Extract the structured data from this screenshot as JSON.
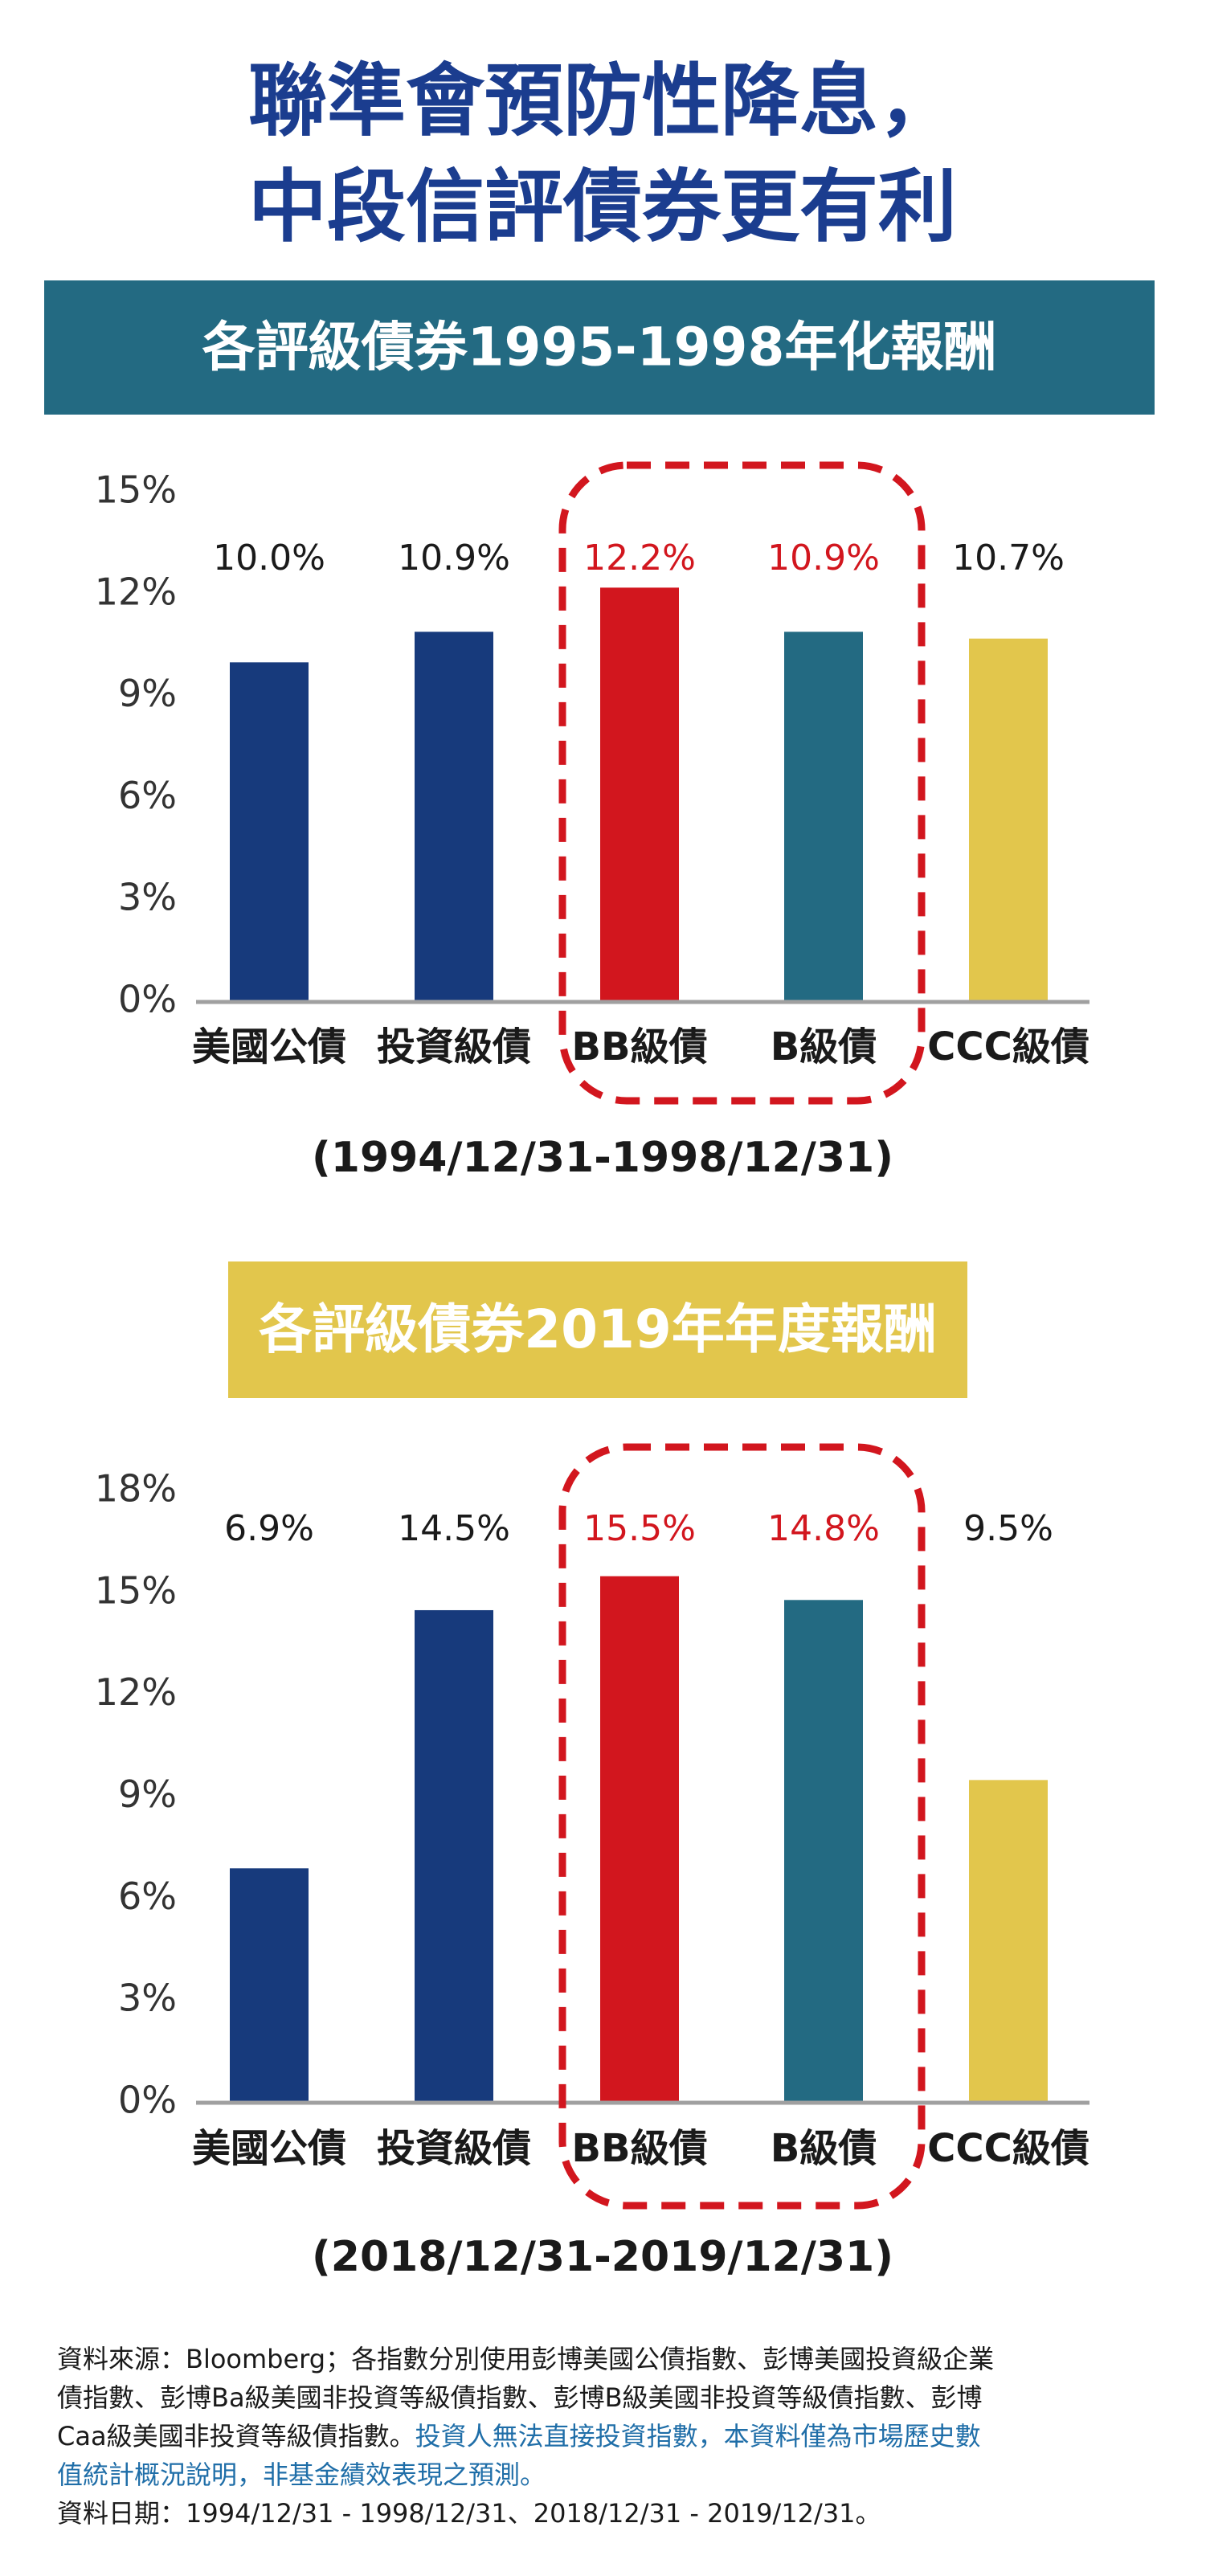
{
  "title": [
    "聯準會預防性降息，",
    "中段信評債券更有利"
  ],
  "chart_data": [
    {
      "type": "bar",
      "title": "各評級債券1995-1998年化報酬",
      "header_color": "#236a82",
      "header_text_color": "#ffffff",
      "subtitle": "(1994/12/31-1998/12/31)",
      "categories": [
        "美國公債",
        "投資級債",
        "BB級債",
        "B級債",
        "CCC級債"
      ],
      "values": [
        10.0,
        10.9,
        12.2,
        10.9,
        10.7
      ],
      "value_labels": [
        "10.0%",
        "10.9%",
        "12.2%",
        "10.9%",
        "10.7%"
      ],
      "colors": [
        "#173a7c",
        "#173a7c",
        "#d2161e",
        "#236a82",
        "#e2c64c"
      ],
      "value_label_colors": [
        "#1a1a1a",
        "#1a1a1a",
        "#d2161e",
        "#d2161e",
        "#1a1a1a"
      ],
      "ylim": [
        0,
        15
      ],
      "yticks": [
        {
          "value": 0,
          "label": "0%"
        },
        {
          "value": 3,
          "label": "3%"
        },
        {
          "value": 6,
          "label": "6%"
        },
        {
          "value": 9,
          "label": "9%"
        },
        {
          "value": 12,
          "label": "12%"
        },
        {
          "value": 15,
          "label": "15%"
        }
      ]
    },
    {
      "type": "bar",
      "title": "各評級債券2019年年度報酬",
      "header_color": "#e2c64c",
      "header_text_color": "#ffffff",
      "subtitle": "(2018/12/31-2019/12/31)",
      "categories": [
        "美國公債",
        "投資級債",
        "BB級債",
        "B級債",
        "CCC級債"
      ],
      "values": [
        6.9,
        14.5,
        15.5,
        14.8,
        9.5
      ],
      "value_labels": [
        "6.9%",
        "14.5%",
        "15.5%",
        "14.8%",
        "9.5%"
      ],
      "colors": [
        "#173a7c",
        "#173a7c",
        "#d2161e",
        "#236a82",
        "#e2c64c"
      ],
      "value_label_colors": [
        "#1a1a1a",
        "#1a1a1a",
        "#d2161e",
        "#d2161e",
        "#1a1a1a"
      ],
      "ylim": [
        0,
        18
      ],
      "yticks": [
        {
          "value": 0,
          "label": "0%"
        },
        {
          "value": 3,
          "label": "3%"
        },
        {
          "value": 6,
          "label": "6%"
        },
        {
          "value": 9,
          "label": "9%"
        },
        {
          "value": 12,
          "label": "12%"
        },
        {
          "value": 15,
          "label": "15%"
        },
        {
          "value": 18,
          "label": "18%"
        }
      ]
    }
  ],
  "footnote": [
    [
      {
        "text": "資料來源：Bloomberg；各指數分別使用彭博美國公債指數、彭博美國投資級企業",
        "color": "#1a1a1a"
      }
    ],
    [
      {
        "text": "債指數、彭博Ba級美國非投資等級債指數、彭博B級美國非投資等級債指數、彭博",
        "color": "#1a1a1a"
      }
    ],
    [
      {
        "text": "Caa級美國非投資等級債指數。",
        "color": "#1a1a1a"
      },
      {
        "text": "投資人無法直接投資指數，本資料僅為市場歷史數",
        "color": "#1f6ea8"
      }
    ],
    [
      {
        "text": "值統計概況說明，非基金績效表現之預測。",
        "color": "#1f6ea8"
      }
    ],
    [
      {
        "text": "資料日期：1994/12/31 - 1998/12/31、2018/12/31 - 2019/12/31。",
        "color": "#1a1a1a"
      }
    ]
  ]
}
